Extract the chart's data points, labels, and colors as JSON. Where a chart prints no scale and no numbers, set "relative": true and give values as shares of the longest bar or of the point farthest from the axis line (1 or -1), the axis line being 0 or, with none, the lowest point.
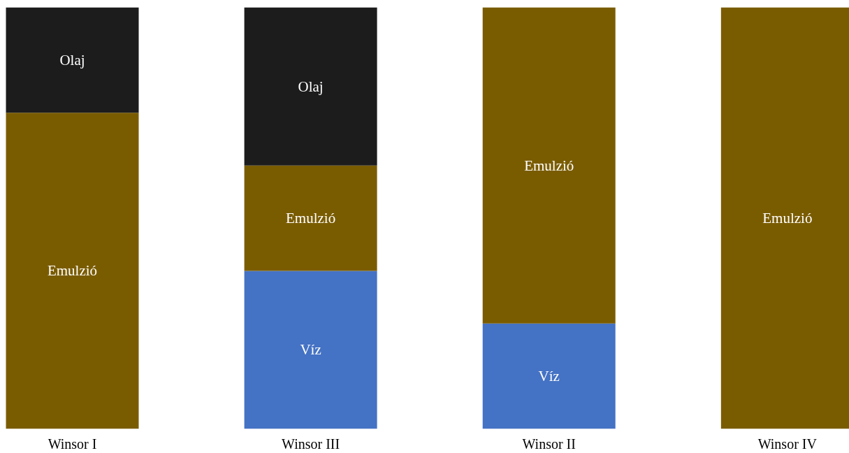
{
  "chart_data": {
    "type": "bar",
    "stacked": true,
    "relative": true,
    "categories": [
      "Winsor I",
      "Winsor III",
      "Winsor II",
      "Winsor IV"
    ],
    "series": [
      {
        "name": "Víz",
        "color": "#4472c4",
        "values": [
          null,
          0.375,
          0.25,
          null
        ]
      },
      {
        "name": "Emulzió",
        "color": "#7a5c00",
        "values": [
          0.75,
          0.25,
          0.75,
          1
        ]
      },
      {
        "name": "Olaj",
        "color": "#1c1c1c",
        "values": [
          0.25,
          0.375,
          null,
          null
        ]
      }
    ]
  }
}
